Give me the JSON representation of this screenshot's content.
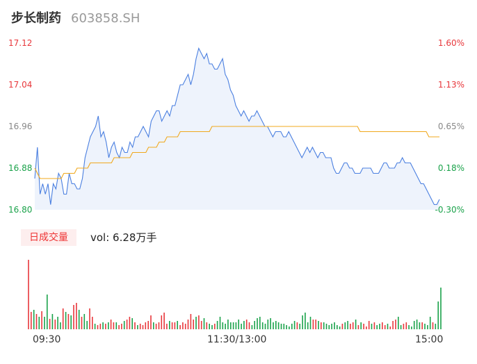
{
  "header": {
    "name": "步长制药",
    "code": "603858.SH"
  },
  "volume_panel": {
    "tab_label": "日成交量",
    "volume_text": "vol: 6.28万手"
  },
  "colors": {
    "up": "#e8373b",
    "down": "#1aa24a",
    "price_line": "#4a7fe0",
    "avg_line": "#f0a81c",
    "area": "#eef3fc"
  },
  "chart_data": [
    {
      "type": "line",
      "title": "",
      "y_left_ticks": [
        "17.12",
        "17.04",
        "16.96",
        "16.88",
        "16.80"
      ],
      "y_right_ticks": [
        "1.60%",
        "1.13%",
        "0.65%",
        "0.18%",
        "-0.30%"
      ],
      "ylim": [
        16.8,
        17.12
      ],
      "x_ticks": [
        "09:30",
        "11:30/13:00",
        "15:00"
      ],
      "series": [
        {
          "name": "",
          "kind": "price",
          "values": [
            16.86,
            16.92,
            16.83,
            16.85,
            16.83,
            16.85,
            16.81,
            16.85,
            16.84,
            16.87,
            16.86,
            16.83,
            16.83,
            16.87,
            16.85,
            16.85,
            16.84,
            16.84,
            16.86,
            16.9,
            16.92,
            16.94,
            16.95,
            16.96,
            16.98,
            16.94,
            16.95,
            16.93,
            16.9,
            16.92,
            16.93,
            16.91,
            16.9,
            16.92,
            16.91,
            16.91,
            16.93,
            16.92,
            16.94,
            16.94,
            16.95,
            16.96,
            16.95,
            16.94,
            16.97,
            16.98,
            16.99,
            16.99,
            16.97,
            16.98,
            16.99,
            16.98,
            17.0,
            17.0,
            17.02,
            17.04,
            17.04,
            17.05,
            17.06,
            17.04,
            17.06,
            17.09,
            17.11,
            17.1,
            17.09,
            17.1,
            17.08,
            17.08,
            17.07,
            17.07,
            17.08,
            17.09,
            17.06,
            17.05,
            17.03,
            17.02,
            17.0,
            16.99,
            16.98,
            16.99,
            16.98,
            16.97,
            16.98,
            16.98,
            16.99,
            16.98,
            16.97,
            16.96,
            16.96,
            16.95,
            16.94,
            16.95,
            16.95,
            16.95,
            16.94,
            16.94,
            16.95,
            16.94,
            16.93,
            16.92,
            16.91,
            16.9,
            16.91,
            16.92,
            16.91,
            16.92,
            16.91,
            16.9,
            16.91,
            16.91,
            16.9,
            16.9,
            16.9,
            16.88,
            16.87,
            16.87,
            16.88,
            16.89,
            16.89,
            16.88,
            16.88,
            16.87,
            16.87,
            16.87,
            16.88,
            16.88,
            16.88,
            16.88,
            16.87,
            16.87,
            16.87,
            16.88,
            16.89,
            16.89,
            16.88,
            16.88,
            16.88,
            16.89,
            16.89,
            16.9,
            16.89,
            16.89,
            16.89,
            16.88,
            16.87,
            16.86,
            16.85,
            16.85,
            16.84,
            16.83,
            16.82,
            16.81,
            16.81,
            16.82
          ]
        },
        {
          "name": "",
          "kind": "avg",
          "values": [
            16.88,
            16.87,
            16.86,
            16.86,
            16.86,
            16.86,
            16.86,
            16.86,
            16.86,
            16.86,
            16.86,
            16.87,
            16.87,
            16.87,
            16.87,
            16.87,
            16.88,
            16.88,
            16.88,
            16.88,
            16.88,
            16.89,
            16.89,
            16.89,
            16.89,
            16.89,
            16.89,
            16.89,
            16.89,
            16.89,
            16.9,
            16.9,
            16.9,
            16.9,
            16.9,
            16.9,
            16.9,
            16.91,
            16.91,
            16.91,
            16.91,
            16.91,
            16.91,
            16.92,
            16.92,
            16.92,
            16.92,
            16.93,
            16.93,
            16.93,
            16.94,
            16.94,
            16.94,
            16.94,
            16.94,
            16.95,
            16.95,
            16.95,
            16.95,
            16.95,
            16.95,
            16.95,
            16.95,
            16.95,
            16.95,
            16.95,
            16.95,
            16.96,
            16.96,
            16.96,
            16.96,
            16.96,
            16.96,
            16.96,
            16.96,
            16.96,
            16.96,
            16.96,
            16.96,
            16.96,
            16.96,
            16.96,
            16.96,
            16.96,
            16.96,
            16.96,
            16.96,
            16.96,
            16.96,
            16.96,
            16.96,
            16.96,
            16.96,
            16.96,
            16.96,
            16.96,
            16.96,
            16.96,
            16.96,
            16.96,
            16.96,
            16.96,
            16.96,
            16.96,
            16.96,
            16.96,
            16.96,
            16.96,
            16.96,
            16.96,
            16.96,
            16.96,
            16.96,
            16.96,
            16.96,
            16.96,
            16.96,
            16.96,
            16.96,
            16.96,
            16.96,
            16.96,
            16.96,
            16.95,
            16.95,
            16.95,
            16.95,
            16.95,
            16.95,
            16.95,
            16.95,
            16.95,
            16.95,
            16.95,
            16.95,
            16.95,
            16.95,
            16.95,
            16.95,
            16.95,
            16.95,
            16.95,
            16.95,
            16.95,
            16.95,
            16.95,
            16.95,
            16.95,
            16.95,
            16.94,
            16.94,
            16.94,
            16.94,
            16.94
          ]
        }
      ]
    },
    {
      "type": "bar",
      "title": "",
      "volume": [
        100,
        25,
        28,
        22,
        18,
        26,
        18,
        50,
        15,
        22,
        14,
        18,
        10,
        30,
        25,
        22,
        20,
        35,
        38,
        28,
        18,
        22,
        12,
        30,
        18,
        8,
        6,
        8,
        10,
        8,
        10,
        14,
        10,
        10,
        6,
        8,
        12,
        14,
        18,
        16,
        10,
        6,
        8,
        6,
        10,
        12,
        20,
        10,
        8,
        10,
        20,
        24,
        8,
        12,
        10,
        10,
        12,
        6,
        10,
        8,
        14,
        22,
        14,
        18,
        20,
        12,
        16,
        10,
        8,
        6,
        8,
        12,
        18,
        10,
        8,
        14,
        10,
        10,
        10,
        14,
        8,
        12,
        14,
        10,
        6,
        12,
        16,
        18,
        10,
        8,
        14,
        16,
        10,
        12,
        10,
        8,
        8,
        6,
        4,
        8,
        12,
        10,
        8,
        20,
        24,
        10,
        18,
        14,
        14,
        12,
        10,
        10,
        8,
        6,
        8,
        10,
        6,
        4,
        8,
        10,
        12,
        8,
        10,
        14,
        6,
        10,
        8,
        4,
        12,
        8,
        10,
        6,
        8,
        10,
        6,
        8,
        4,
        12,
        14,
        18,
        6,
        8,
        10,
        6,
        4,
        12,
        14,
        10,
        10,
        8,
        6,
        18,
        10,
        8,
        40,
        60
      ],
      "direction": [
        "up",
        "up",
        "down",
        "up",
        "down",
        "up",
        "down",
        "down",
        "up",
        "down",
        "up",
        "down",
        "down",
        "up",
        "down",
        "up",
        "down",
        "up",
        "up",
        "down",
        "up",
        "down",
        "down",
        "up",
        "up",
        "down",
        "up",
        "up",
        "down",
        "up",
        "down",
        "up",
        "up",
        "down",
        "up",
        "up",
        "down",
        "up",
        "up",
        "down",
        "up",
        "down",
        "up",
        "up",
        "up",
        "up",
        "up",
        "down",
        "up",
        "up",
        "up",
        "up",
        "up",
        "down",
        "up",
        "up",
        "down",
        "up",
        "up",
        "up",
        "up",
        "up",
        "up",
        "down",
        "up",
        "up",
        "down",
        "up",
        "down",
        "down",
        "up",
        "down",
        "down",
        "down",
        "down",
        "down",
        "down",
        "down",
        "down",
        "down",
        "down",
        "down",
        "up",
        "up",
        "down",
        "down",
        "down",
        "down",
        "down",
        "down",
        "down",
        "down",
        "down",
        "down",
        "down",
        "down",
        "down",
        "down",
        "down",
        "down",
        "down",
        "up",
        "down",
        "down",
        "down",
        "down",
        "down",
        "up",
        "up",
        "down",
        "up",
        "down",
        "down",
        "down",
        "down",
        "down",
        "down",
        "down",
        "up",
        "down",
        "down",
        "up",
        "up",
        "down",
        "up",
        "down",
        "up",
        "up",
        "up",
        "down",
        "up",
        "down",
        "down",
        "up",
        "up",
        "down",
        "up",
        "up",
        "up",
        "down",
        "down",
        "up",
        "up",
        "down",
        "down",
        "down",
        "down",
        "down",
        "up",
        "down",
        "down",
        "down",
        "up",
        "down"
      ]
    }
  ]
}
